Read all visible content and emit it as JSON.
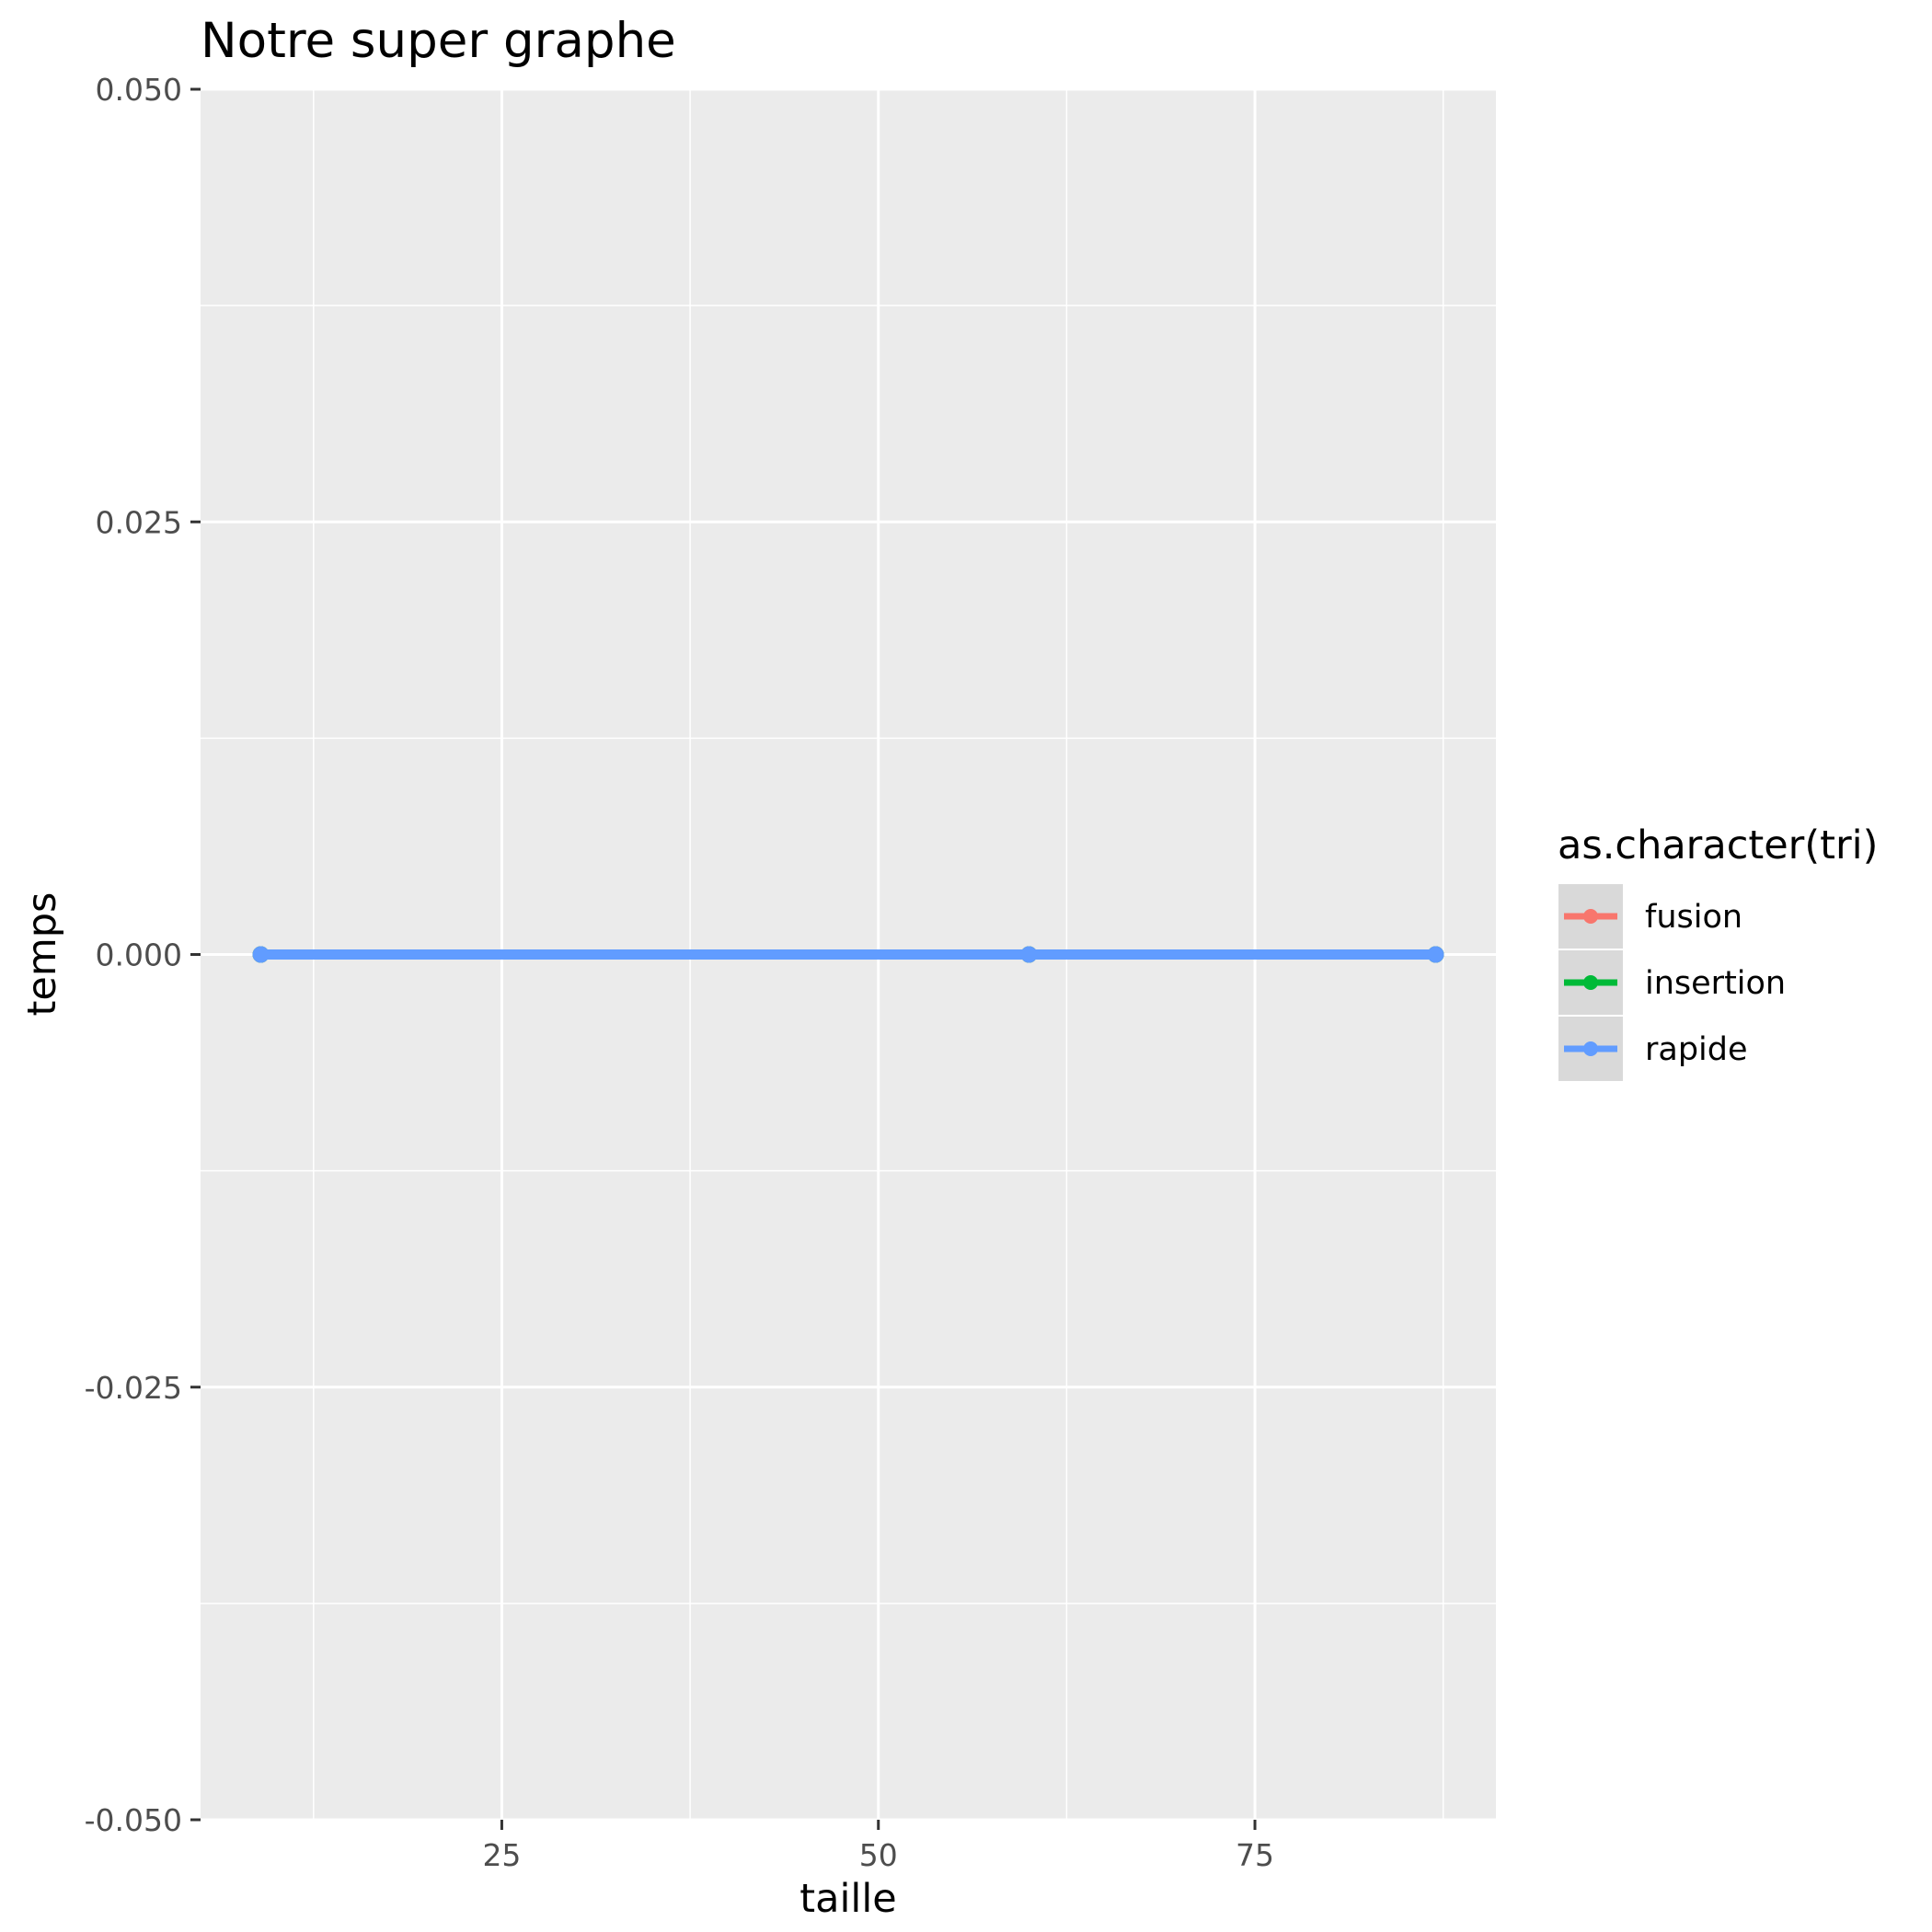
{
  "chart_data": {
    "type": "line",
    "title": "Notre super graphe",
    "xlabel": "taille",
    "ylabel": "temps",
    "xlim": [
      5,
      91
    ],
    "ylim": [
      -0.05,
      0.05
    ],
    "x_ticks": [
      25,
      50,
      75
    ],
    "x_tick_labels": [
      "25",
      "50",
      "75"
    ],
    "y_ticks": [
      -0.05,
      -0.025,
      0,
      0.025,
      0.05
    ],
    "y_tick_labels": [
      "-0.050",
      "-0.025",
      "0.000",
      "0.025",
      "0.050"
    ],
    "grid": true,
    "legend": {
      "title": "as.character(tri)",
      "position": "right"
    },
    "series": [
      {
        "name": "fusion",
        "color": "#F8766D",
        "x": [
          9,
          60,
          87
        ],
        "y": [
          0,
          0,
          0
        ]
      },
      {
        "name": "insertion",
        "color": "#00BA38",
        "x": [
          9,
          60,
          87
        ],
        "y": [
          0,
          0,
          0
        ]
      },
      {
        "name": "rapide",
        "color": "#619CFF",
        "x": [
          9,
          60,
          87
        ],
        "y": [
          0,
          0,
          0
        ]
      }
    ]
  }
}
